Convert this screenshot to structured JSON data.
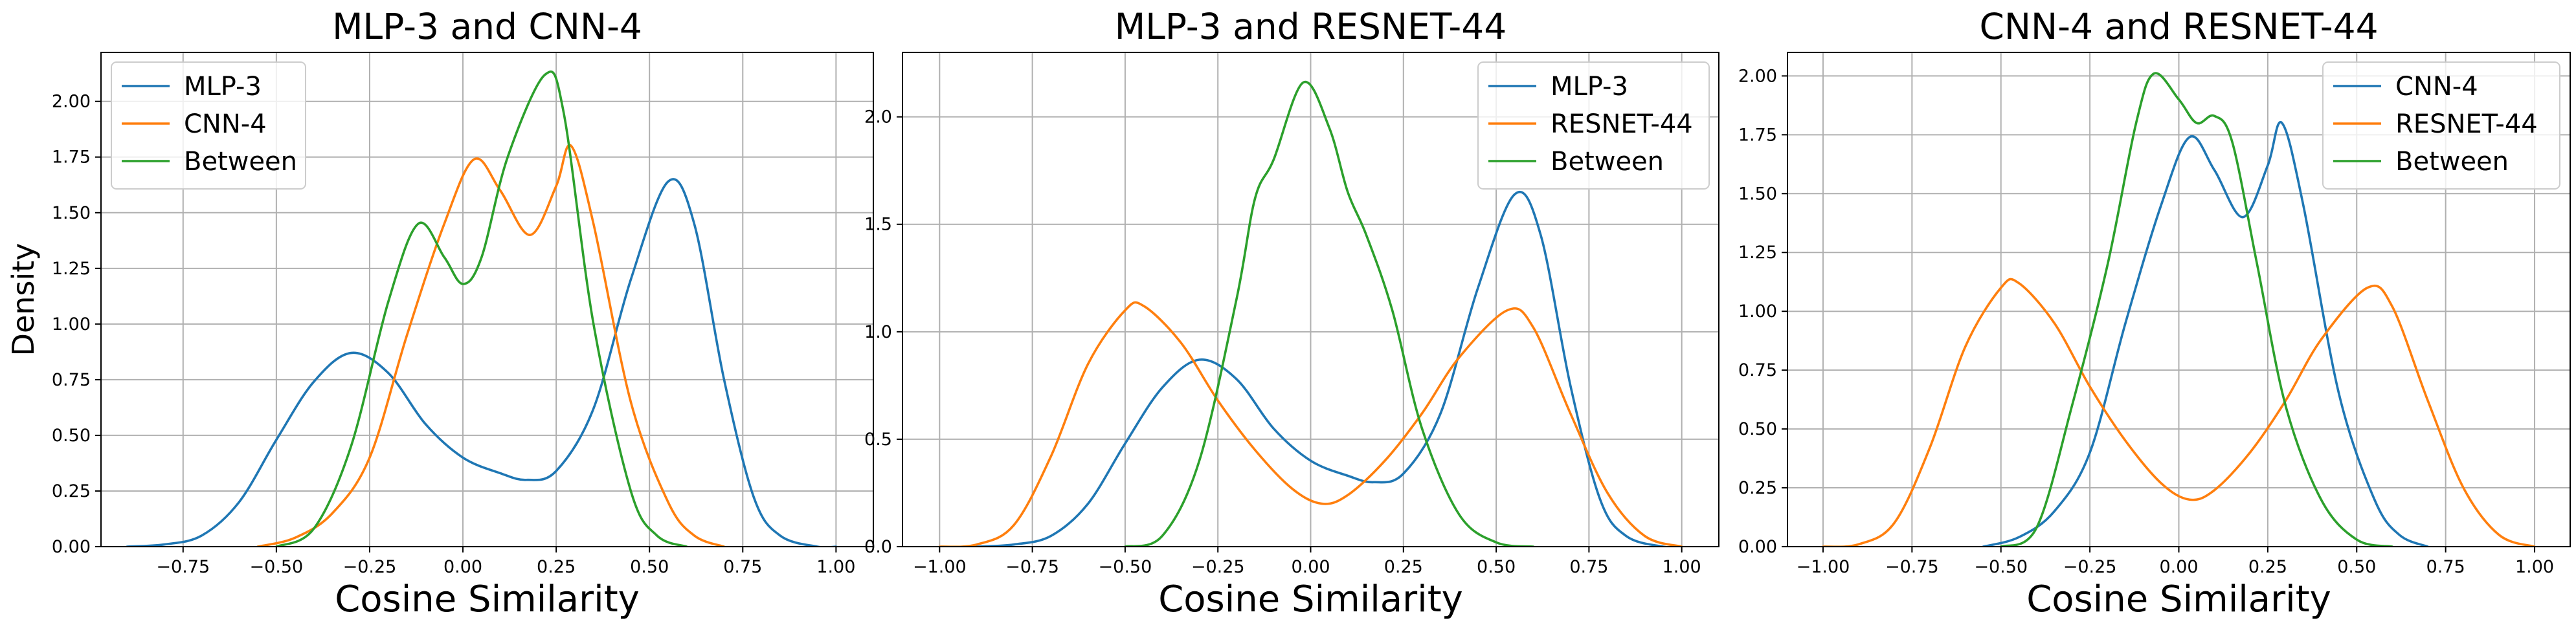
{
  "chart_data": [
    {
      "type": "line",
      "title": "MLP-3 and CNN-4",
      "xlabel": "Cosine Similarity",
      "ylabel": "Density",
      "xlim": [
        -0.97,
        1.1
      ],
      "ylim": [
        0,
        2.22
      ],
      "xticks": [
        -0.75,
        -0.5,
        -0.25,
        0.0,
        0.25,
        0.5,
        0.75,
        1.0
      ],
      "xtick_labels": [
        "−0.75",
        "−0.50",
        "−0.25",
        "0.00",
        "0.25",
        "0.50",
        "0.75",
        "1.00"
      ],
      "yticks": [
        0.0,
        0.25,
        0.5,
        0.75,
        1.0,
        1.25,
        1.5,
        1.75,
        2.0
      ],
      "ytick_labels": [
        "0.00",
        "0.25",
        "0.50",
        "0.75",
        "1.00",
        "1.25",
        "1.50",
        "1.75",
        "2.00"
      ],
      "grid": true,
      "legend_position": "top-left",
      "series": [
        {
          "name": "MLP-3",
          "color": "#1f77b4",
          "points": [
            [
              -0.9,
              0.0
            ],
            [
              -0.8,
              0.01
            ],
            [
              -0.7,
              0.05
            ],
            [
              -0.6,
              0.2
            ],
            [
              -0.5,
              0.48
            ],
            [
              -0.4,
              0.74
            ],
            [
              -0.3,
              0.87
            ],
            [
              -0.2,
              0.78
            ],
            [
              -0.1,
              0.55
            ],
            [
              0.0,
              0.4
            ],
            [
              0.1,
              0.33
            ],
            [
              0.17,
              0.3
            ],
            [
              0.25,
              0.34
            ],
            [
              0.35,
              0.62
            ],
            [
              0.45,
              1.2
            ],
            [
              0.55,
              1.64
            ],
            [
              0.62,
              1.45
            ],
            [
              0.7,
              0.75
            ],
            [
              0.78,
              0.22
            ],
            [
              0.85,
              0.05
            ],
            [
              0.95,
              0.0
            ],
            [
              1.0,
              0.0
            ]
          ]
        },
        {
          "name": "CNN-4",
          "color": "#ff7f0e",
          "points": [
            [
              -0.55,
              0.0
            ],
            [
              -0.45,
              0.04
            ],
            [
              -0.35,
              0.15
            ],
            [
              -0.25,
              0.4
            ],
            [
              -0.15,
              0.95
            ],
            [
              -0.05,
              1.45
            ],
            [
              0.03,
              1.74
            ],
            [
              0.1,
              1.6
            ],
            [
              0.18,
              1.4
            ],
            [
              0.25,
              1.62
            ],
            [
              0.29,
              1.8
            ],
            [
              0.35,
              1.45
            ],
            [
              0.45,
              0.65
            ],
            [
              0.55,
              0.2
            ],
            [
              0.62,
              0.05
            ],
            [
              0.7,
              0.0
            ]
          ]
        },
        {
          "name": "Between",
          "color": "#2ca02c",
          "points": [
            [
              -0.5,
              0.0
            ],
            [
              -0.4,
              0.08
            ],
            [
              -0.3,
              0.45
            ],
            [
              -0.2,
              1.1
            ],
            [
              -0.12,
              1.45
            ],
            [
              -0.05,
              1.3
            ],
            [
              0.0,
              1.18
            ],
            [
              0.05,
              1.3
            ],
            [
              0.12,
              1.75
            ],
            [
              0.22,
              2.12
            ],
            [
              0.27,
              1.95
            ],
            [
              0.35,
              1.0
            ],
            [
              0.45,
              0.25
            ],
            [
              0.52,
              0.05
            ],
            [
              0.6,
              0.0
            ]
          ]
        }
      ]
    },
    {
      "type": "line",
      "title": "MLP-3 and RESNET-44",
      "xlabel": "Cosine Similarity",
      "ylabel": "",
      "xlim": [
        -1.1,
        1.1
      ],
      "ylim": [
        0,
        2.3
      ],
      "xticks": [
        -1.0,
        -0.75,
        -0.5,
        -0.25,
        0.0,
        0.25,
        0.5,
        0.75,
        1.0
      ],
      "xtick_labels": [
        "−1.00",
        "−0.75",
        "−0.50",
        "−0.25",
        "0.00",
        "0.25",
        "0.50",
        "0.75",
        "1.00"
      ],
      "yticks": [
        0.0,
        0.5,
        1.0,
        1.5,
        2.0
      ],
      "ytick_labels": [
        "0.0",
        "0.5",
        "1.0",
        "1.5",
        "2.0"
      ],
      "grid": true,
      "legend_position": "top-right",
      "series": [
        {
          "name": "MLP-3",
          "color": "#1f77b4",
          "points": [
            [
              -0.9,
              0.0
            ],
            [
              -0.8,
              0.01
            ],
            [
              -0.7,
              0.05
            ],
            [
              -0.6,
              0.2
            ],
            [
              -0.5,
              0.48
            ],
            [
              -0.4,
              0.74
            ],
            [
              -0.3,
              0.87
            ],
            [
              -0.2,
              0.78
            ],
            [
              -0.1,
              0.55
            ],
            [
              0.0,
              0.4
            ],
            [
              0.1,
              0.33
            ],
            [
              0.17,
              0.3
            ],
            [
              0.25,
              0.34
            ],
            [
              0.35,
              0.62
            ],
            [
              0.45,
              1.2
            ],
            [
              0.55,
              1.64
            ],
            [
              0.62,
              1.45
            ],
            [
              0.7,
              0.75
            ],
            [
              0.78,
              0.22
            ],
            [
              0.85,
              0.05
            ],
            [
              0.95,
              0.0
            ],
            [
              1.0,
              0.0
            ]
          ]
        },
        {
          "name": "RESNET-44",
          "color": "#ff7f0e",
          "points": [
            [
              -1.0,
              0.0
            ],
            [
              -0.9,
              0.01
            ],
            [
              -0.8,
              0.1
            ],
            [
              -0.7,
              0.42
            ],
            [
              -0.6,
              0.85
            ],
            [
              -0.5,
              1.1
            ],
            [
              -0.45,
              1.12
            ],
            [
              -0.35,
              0.95
            ],
            [
              -0.25,
              0.68
            ],
            [
              -0.15,
              0.45
            ],
            [
              -0.05,
              0.27
            ],
            [
              0.03,
              0.2
            ],
            [
              0.1,
              0.24
            ],
            [
              0.2,
              0.4
            ],
            [
              0.3,
              0.62
            ],
            [
              0.4,
              0.88
            ],
            [
              0.53,
              1.1
            ],
            [
              0.6,
              1.02
            ],
            [
              0.7,
              0.62
            ],
            [
              0.8,
              0.25
            ],
            [
              0.9,
              0.05
            ],
            [
              1.0,
              0.0
            ]
          ]
        },
        {
          "name": "Between",
          "color": "#2ca02c",
          "points": [
            [
              -0.5,
              0.0
            ],
            [
              -0.4,
              0.05
            ],
            [
              -0.3,
              0.4
            ],
            [
              -0.2,
              1.15
            ],
            [
              -0.15,
              1.62
            ],
            [
              -0.1,
              1.8
            ],
            [
              -0.02,
              2.16
            ],
            [
              0.05,
              1.95
            ],
            [
              0.1,
              1.65
            ],
            [
              0.15,
              1.45
            ],
            [
              0.22,
              1.1
            ],
            [
              0.3,
              0.55
            ],
            [
              0.4,
              0.15
            ],
            [
              0.5,
              0.02
            ],
            [
              0.6,
              0.0
            ]
          ]
        }
      ]
    },
    {
      "type": "line",
      "title": "CNN-4 and RESNET-44",
      "xlabel": "Cosine Similarity",
      "ylabel": "",
      "xlim": [
        -1.1,
        1.1
      ],
      "ylim": [
        0,
        2.1
      ],
      "xticks": [
        -1.0,
        -0.75,
        -0.5,
        -0.25,
        0.0,
        0.25,
        0.5,
        0.75,
        1.0
      ],
      "xtick_labels": [
        "−1.00",
        "−0.75",
        "−0.50",
        "−0.25",
        "0.00",
        "0.25",
        "0.50",
        "0.75",
        "1.00"
      ],
      "yticks": [
        0.0,
        0.25,
        0.5,
        0.75,
        1.0,
        1.25,
        1.5,
        1.75,
        2.0
      ],
      "ytick_labels": [
        "0.00",
        "0.25",
        "0.50",
        "0.75",
        "1.00",
        "1.25",
        "1.50",
        "1.75",
        "2.00"
      ],
      "grid": true,
      "legend_position": "top-right",
      "series": [
        {
          "name": "CNN-4",
          "color": "#1f77b4",
          "points": [
            [
              -0.55,
              0.0
            ],
            [
              -0.45,
              0.04
            ],
            [
              -0.35,
              0.15
            ],
            [
              -0.25,
              0.4
            ],
            [
              -0.15,
              0.95
            ],
            [
              -0.05,
              1.45
            ],
            [
              0.03,
              1.74
            ],
            [
              0.1,
              1.6
            ],
            [
              0.18,
              1.4
            ],
            [
              0.25,
              1.62
            ],
            [
              0.29,
              1.8
            ],
            [
              0.35,
              1.45
            ],
            [
              0.45,
              0.65
            ],
            [
              0.55,
              0.2
            ],
            [
              0.62,
              0.05
            ],
            [
              0.7,
              0.0
            ]
          ]
        },
        {
          "name": "RESNET-44",
          "color": "#ff7f0e",
          "points": [
            [
              -1.0,
              0.0
            ],
            [
              -0.9,
              0.01
            ],
            [
              -0.8,
              0.1
            ],
            [
              -0.7,
              0.42
            ],
            [
              -0.6,
              0.85
            ],
            [
              -0.5,
              1.1
            ],
            [
              -0.45,
              1.12
            ],
            [
              -0.35,
              0.95
            ],
            [
              -0.25,
              0.68
            ],
            [
              -0.15,
              0.45
            ],
            [
              -0.05,
              0.27
            ],
            [
              0.03,
              0.2
            ],
            [
              0.1,
              0.24
            ],
            [
              0.2,
              0.4
            ],
            [
              0.3,
              0.62
            ],
            [
              0.4,
              0.88
            ],
            [
              0.53,
              1.1
            ],
            [
              0.6,
              1.02
            ],
            [
              0.7,
              0.62
            ],
            [
              0.8,
              0.25
            ],
            [
              0.9,
              0.05
            ],
            [
              1.0,
              0.0
            ]
          ]
        },
        {
          "name": "Between",
          "color": "#2ca02c",
          "points": [
            [
              -0.5,
              0.0
            ],
            [
              -0.4,
              0.08
            ],
            [
              -0.3,
              0.6
            ],
            [
              -0.2,
              1.2
            ],
            [
              -0.12,
              1.8
            ],
            [
              -0.07,
              2.01
            ],
            [
              0.0,
              1.9
            ],
            [
              0.05,
              1.8
            ],
            [
              0.1,
              1.83
            ],
            [
              0.15,
              1.72
            ],
            [
              0.22,
              1.2
            ],
            [
              0.3,
              0.6
            ],
            [
              0.4,
              0.2
            ],
            [
              0.5,
              0.03
            ],
            [
              0.6,
              0.0
            ]
          ]
        }
      ]
    }
  ]
}
